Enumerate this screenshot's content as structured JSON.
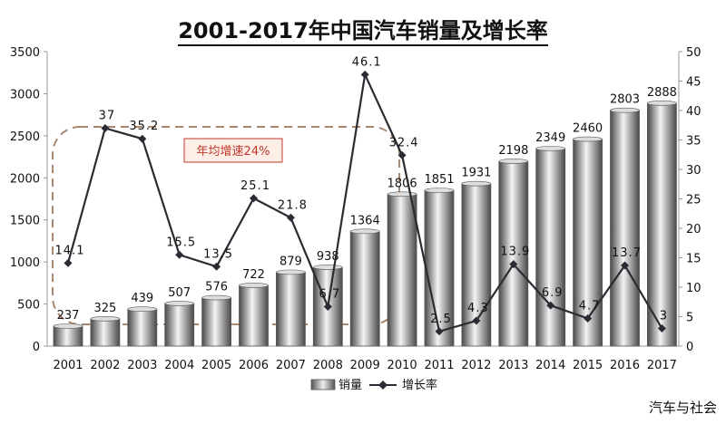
{
  "chart_data": {
    "type": "bar+line",
    "title": "2001-2017年中国汽车销量及增长率",
    "categories": [
      "2001",
      "2002",
      "2003",
      "2004",
      "2005",
      "2006",
      "2007",
      "2008",
      "2009",
      "2010",
      "2011",
      "2012",
      "2013",
      "2014",
      "2015",
      "2016",
      "2017"
    ],
    "series": [
      {
        "name": "销量",
        "type": "bar",
        "axis": "left",
        "values": [
          237,
          325,
          439,
          507,
          576,
          722,
          879,
          938,
          1364,
          1806,
          1851,
          1931,
          2198,
          2349,
          2460,
          2803,
          2888
        ],
        "labels": [
          "237",
          "325",
          "439",
          "507",
          "576",
          "722",
          "879",
          "938",
          "1364",
          "1806",
          "1851",
          "1931",
          "2198",
          "2349",
          "2460",
          "2803",
          "2888"
        ]
      },
      {
        "name": "增长率",
        "type": "line",
        "axis": "right",
        "values": [
          14.1,
          37,
          35.2,
          15.5,
          13.5,
          25.1,
          21.8,
          6.7,
          46.1,
          32.4,
          2.5,
          4.3,
          13.9,
          6.9,
          4.7,
          13.7,
          3
        ],
        "labels": [
          "14.1",
          "37",
          "35.2",
          "15.5",
          "13.5",
          "25.1",
          "21.8",
          "6.7",
          "46.1",
          "32.4",
          "2.5",
          "4.3",
          "13.9",
          "6.9",
          "4.7",
          "13.7",
          "3"
        ]
      }
    ],
    "y_left": {
      "min": 0,
      "max": 3500,
      "ticks": [
        "0",
        "500",
        "1000",
        "1500",
        "2000",
        "2500",
        "3000",
        "3500"
      ]
    },
    "y_right": {
      "min": 0,
      "max": 50,
      "ticks": [
        "0",
        "5",
        "10",
        "15",
        "20",
        "25",
        "30",
        "35",
        "40",
        "45",
        "50"
      ]
    },
    "annotation": "年均增速24%",
    "legend": {
      "position": "bottom",
      "items": [
        "销量",
        "增长率"
      ]
    },
    "grid": false
  },
  "watermark": "汽车与社会",
  "colors": {
    "line": "#2b2b33",
    "annotation": "#c0392b",
    "bar_dark": "#4a4747",
    "bar_light": "#f4f4f4"
  }
}
